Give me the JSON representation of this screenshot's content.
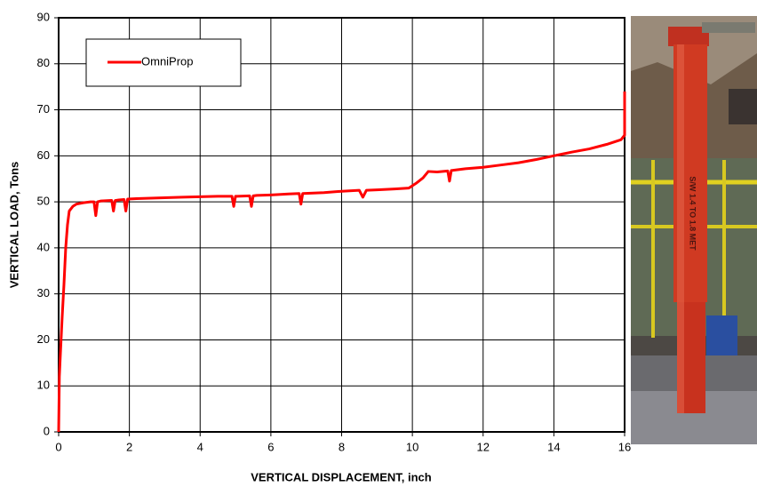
{
  "chart_data": {
    "type": "line",
    "x_label": "VERTICAL DISPLACEMENT, inch",
    "y_label": "VERTICAL LOAD, Tons",
    "x": [
      0,
      0.02,
      0.05,
      0.1,
      0.15,
      0.2,
      0.25,
      0.3,
      0.4,
      0.5,
      0.7,
      0.9,
      1.0,
      1.05,
      1.1,
      1.2,
      1.5,
      1.55,
      1.6,
      1.7,
      1.85,
      1.9,
      1.95,
      2.2,
      2.6,
      3.0,
      3.5,
      4.0,
      4.5,
      4.9,
      4.95,
      5.0,
      5.05,
      5.4,
      5.45,
      5.5,
      5.6,
      6.0,
      6.5,
      6.8,
      6.85,
      6.9,
      7.5,
      8.0,
      8.5,
      8.6,
      8.7,
      9.0,
      9.5,
      9.9,
      10.1,
      10.3,
      10.45,
      10.7,
      11.0,
      11.05,
      11.1,
      11.2,
      11.5,
      12.0,
      12.5,
      13.0,
      13.5,
      14.0,
      14.5,
      15.0,
      15.5,
      15.9,
      16.0,
      16.0
    ],
    "series": [
      {
        "name": "OmniProp",
        "color": "#ff0000",
        "values": [
          0,
          12,
          17,
          25,
          32,
          40,
          45,
          48,
          49,
          49.5,
          49.8,
          50,
          50,
          47,
          50,
          50.2,
          50.3,
          48,
          50.3,
          50.4,
          50.5,
          48,
          50.6,
          50.7,
          50.8,
          50.9,
          51,
          51.1,
          51.2,
          51.2,
          49,
          51.2,
          51.2,
          51.3,
          49,
          51.3,
          51.4,
          51.5,
          51.7,
          51.8,
          49.5,
          51.8,
          52,
          52.3,
          52.5,
          51,
          52.5,
          52.6,
          52.8,
          53,
          54,
          55.2,
          56.6,
          56.5,
          56.7,
          54.5,
          56.8,
          56.9,
          57.2,
          57.5,
          58,
          58.5,
          59.2,
          60,
          60.8,
          61.5,
          62.5,
          63.5,
          64.5,
          74
        ]
      }
    ],
    "xlim": [
      0,
      16
    ],
    "xticks": [
      0,
      2,
      4,
      6,
      8,
      10,
      12,
      14,
      16
    ],
    "ylim": [
      0,
      90
    ],
    "yticks": [
      0,
      10,
      20,
      30,
      40,
      50,
      60,
      70,
      80,
      90
    ],
    "grid": true,
    "legend": "upper-left"
  },
  "photo": {
    "label": "S/W 1.4 TO 1.8 MET"
  }
}
